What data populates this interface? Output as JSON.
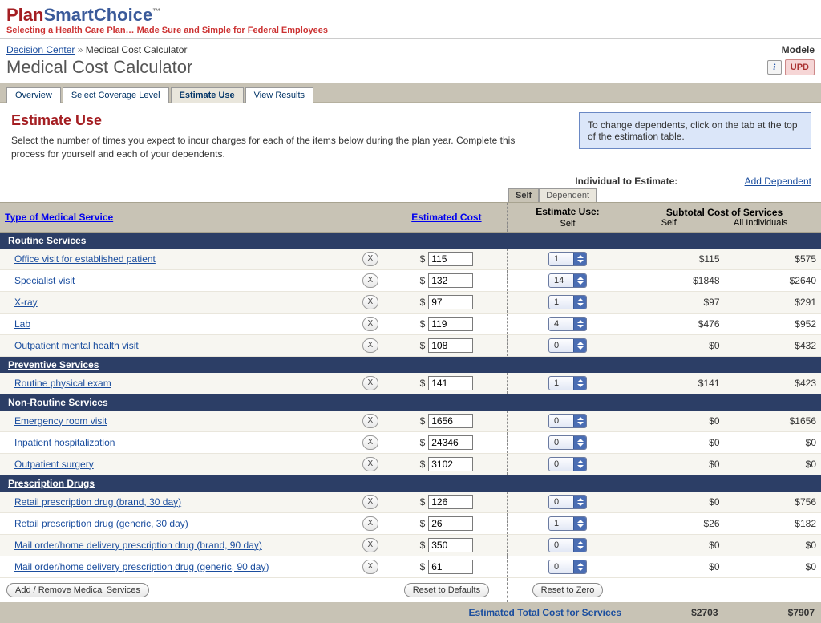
{
  "logo": {
    "part1": "Plan",
    "part2": "Smart",
    "part3": "Choice",
    "tm": "™"
  },
  "tagline": "Selecting a Health Care Plan… Made Sure and Simple for Federal Employees",
  "breadcrumb": {
    "home": "Decision Center",
    "sep": " » ",
    "current": "Medical Cost Calculator"
  },
  "model_label": "Modele",
  "page_title": "Medical Cost Calculator",
  "info_icon": "i",
  "upd_label": "UPD",
  "main_tabs": [
    "Overview",
    "Select Coverage Level",
    "Estimate Use",
    "View Results"
  ],
  "active_tab": 2,
  "intro": {
    "heading": "Estimate Use",
    "text": "Select the number of times you expect to incur charges for each of the items below during the plan year. Complete this process for yourself and each of your dependents."
  },
  "tip": "To change dependents, click on the tab at the top of the estimation table.",
  "individual_label": "Individual to Estimate:",
  "add_dependent": "Add Dependent",
  "mini_tabs": [
    "Self",
    "Dependent"
  ],
  "mini_active": 0,
  "table_headers": {
    "svc": "Type of Medical Service",
    "cost": "Estimated Cost",
    "use_top": "Estimate Use:",
    "use_sub": "Self",
    "subtotal_top": "Subtotal Cost of Services",
    "self": "Self",
    "all": "All Individuals"
  },
  "sections": [
    {
      "title": "Routine Services",
      "rows": [
        {
          "svc": "Office visit for established patient",
          "cost": "115",
          "qty": "1",
          "self": "$115",
          "all": "$575"
        },
        {
          "svc": "Specialist visit",
          "cost": "132",
          "qty": "14",
          "self": "$1848",
          "all": "$2640"
        },
        {
          "svc": "X-ray",
          "cost": "97",
          "qty": "1",
          "self": "$97",
          "all": "$291"
        },
        {
          "svc": "Lab",
          "cost": "119",
          "qty": "4",
          "self": "$476",
          "all": "$952"
        },
        {
          "svc": "Outpatient mental health visit",
          "cost": "108",
          "qty": "0",
          "self": "$0",
          "all": "$432"
        }
      ]
    },
    {
      "title": "Preventive Services",
      "rows": [
        {
          "svc": "Routine physical exam",
          "cost": "141",
          "qty": "1",
          "self": "$141",
          "all": "$423"
        }
      ]
    },
    {
      "title": "Non-Routine Services",
      "rows": [
        {
          "svc": "Emergency room visit",
          "cost": "1656",
          "qty": "0",
          "self": "$0",
          "all": "$1656"
        },
        {
          "svc": "Inpatient hospitalization",
          "cost": "24346",
          "qty": "0",
          "self": "$0",
          "all": "$0"
        },
        {
          "svc": "Outpatient surgery",
          "cost": "3102",
          "qty": "0",
          "self": "$0",
          "all": "$0"
        }
      ]
    },
    {
      "title": "Prescription Drugs",
      "rows": [
        {
          "svc": "Retail prescription drug (brand, 30 day)",
          "cost": "126",
          "qty": "0",
          "self": "$0",
          "all": "$756"
        },
        {
          "svc": "Retail prescription drug (generic, 30 day)",
          "cost": "26",
          "qty": "1",
          "self": "$26",
          "all": "$182"
        },
        {
          "svc": "Mail order/home delivery prescription drug (brand, 90 day)",
          "cost": "350",
          "qty": "0",
          "self": "$0",
          "all": "$0"
        },
        {
          "svc": "Mail order/home delivery prescription drug (generic, 90 day)",
          "cost": "61",
          "qty": "0",
          "self": "$0",
          "all": "$0"
        }
      ]
    }
  ],
  "footer_buttons": {
    "add_remove": "Add / Remove Medical Services",
    "reset_defaults": "Reset to Defaults",
    "reset_zero": "Reset to Zero"
  },
  "totals": {
    "label": "Estimated Total Cost for Services",
    "self": "$2703",
    "all": "$7907"
  },
  "x_label": "X",
  "dollar": "$"
}
